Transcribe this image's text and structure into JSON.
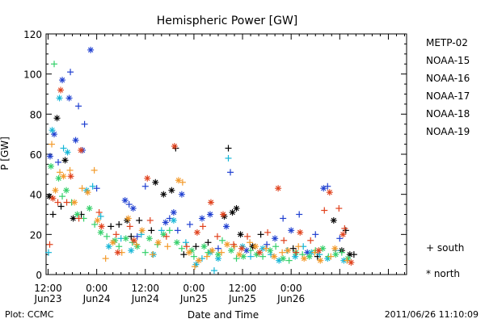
{
  "chart_data": {
    "type": "scatter",
    "title": "Hemispheric Power [GW]",
    "ylabel": "P [GW]",
    "xlabel": "Date and Time",
    "ylim": [
      0,
      120
    ],
    "yticks": [
      0,
      20,
      40,
      60,
      80,
      100,
      120
    ],
    "xlim_hours": [
      -0.5,
      88.5
    ],
    "xticks": [
      {
        "hour": 0,
        "line1": "12:00",
        "line2": "Jun23"
      },
      {
        "hour": 12,
        "line1": "0:00",
        "line2": "Jun24"
      },
      {
        "hour": 24,
        "line1": "12:00",
        "line2": "Jun24"
      },
      {
        "hour": 36,
        "line1": "0:00",
        "line2": "Jun25"
      },
      {
        "hour": 48,
        "line1": "12:00",
        "line2": "Jun25"
      },
      {
        "hour": 60,
        "line1": "0:00",
        "line2": "Jun26"
      }
    ],
    "legend": {
      "position": "right",
      "title": "METP-02",
      "title_color": "#000000",
      "markers": {
        "south": "+ south",
        "north": "* north"
      }
    },
    "series": [
      {
        "name": "METP-02",
        "color": "#000000",
        "north": [
          [
            0.3,
            39
          ],
          [
            2.2,
            78
          ],
          [
            4.2,
            57
          ],
          [
            6.2,
            28
          ],
          [
            19.5,
            27
          ],
          [
            26.5,
            46
          ],
          [
            28.5,
            40
          ],
          [
            30.5,
            42
          ],
          [
            43.5,
            29
          ],
          [
            45.5,
            31
          ],
          [
            46.5,
            33
          ],
          [
            47.5,
            20
          ],
          [
            50.5,
            14
          ],
          [
            70.5,
            27
          ],
          [
            72.5,
            12
          ],
          [
            74.5,
            10
          ]
        ],
        "south": [
          [
            1.2,
            30
          ],
          [
            3.2,
            34
          ],
          [
            8.2,
            30
          ],
          [
            15.5,
            24
          ],
          [
            17.5,
            25
          ],
          [
            20.5,
            19
          ],
          [
            22.5,
            27
          ],
          [
            25.5,
            22
          ],
          [
            31.5,
            63
          ],
          [
            33.5,
            10
          ],
          [
            36.5,
            14
          ],
          [
            39.5,
            16
          ],
          [
            44.5,
            63
          ],
          [
            52.5,
            20
          ],
          [
            60.5,
            13
          ],
          [
            66.5,
            9
          ],
          [
            73.5,
            22
          ],
          [
            75.5,
            10
          ]
        ]
      },
      {
        "name": "NOAA-15",
        "color": "#1f3fd0",
        "north": [
          [
            0.5,
            59
          ],
          [
            1.5,
            70
          ],
          [
            3.5,
            97
          ],
          [
            5.2,
            88
          ],
          [
            6.8,
            67
          ],
          [
            8.5,
            62
          ],
          [
            10.5,
            112
          ],
          [
            19,
            37
          ],
          [
            21,
            33
          ],
          [
            29,
            26
          ],
          [
            31,
            31
          ],
          [
            33,
            40
          ],
          [
            38,
            28
          ],
          [
            40,
            30
          ],
          [
            44,
            24
          ],
          [
            49,
            12
          ],
          [
            56,
            18
          ],
          [
            60,
            22
          ],
          [
            64,
            11
          ],
          [
            68,
            43
          ]
        ],
        "south": [
          [
            2.5,
            56
          ],
          [
            5.5,
            101
          ],
          [
            7.5,
            84
          ],
          [
            9,
            75
          ],
          [
            12,
            43
          ],
          [
            20,
            35
          ],
          [
            22,
            19
          ],
          [
            24,
            44
          ],
          [
            30,
            28
          ],
          [
            32,
            22
          ],
          [
            35,
            25
          ],
          [
            42,
            13
          ],
          [
            45,
            51
          ],
          [
            54,
            15
          ],
          [
            58,
            28
          ],
          [
            62,
            30
          ],
          [
            66,
            20
          ],
          [
            69,
            44
          ],
          [
            72,
            18
          ]
        ]
      },
      {
        "name": "NOAA-16",
        "color": "#16b6d6",
        "north": [
          [
            1.0,
            72
          ],
          [
            2.8,
            88
          ],
          [
            4.8,
            61
          ],
          [
            9.5,
            42
          ],
          [
            15,
            14
          ],
          [
            20.5,
            12
          ],
          [
            26,
            10
          ],
          [
            31,
            27
          ],
          [
            36.5,
            5
          ],
          [
            40,
            11
          ],
          [
            42,
            8
          ],
          [
            48,
            14
          ],
          [
            53,
            13
          ],
          [
            57,
            7
          ],
          [
            61,
            9
          ],
          [
            65,
            11
          ],
          [
            69,
            8
          ],
          [
            73,
            7
          ]
        ],
        "south": [
          [
            0.1,
            11
          ],
          [
            3.8,
            63
          ],
          [
            11,
            44
          ],
          [
            13,
            29
          ],
          [
            18,
            18
          ],
          [
            23,
            20
          ],
          [
            28,
            22
          ],
          [
            34,
            16
          ],
          [
            38,
            8
          ],
          [
            41,
            2
          ],
          [
            44.5,
            58
          ],
          [
            46,
            14
          ],
          [
            50,
            9
          ],
          [
            55,
            10
          ],
          [
            59,
            12
          ],
          [
            63,
            14
          ],
          [
            67,
            10
          ],
          [
            71,
            12
          ]
        ]
      },
      {
        "name": "NOAA-17",
        "color": "#34d06a",
        "north": [
          [
            0.7,
            54
          ],
          [
            2.6,
            48
          ],
          [
            4.5,
            42
          ],
          [
            7.2,
            30
          ],
          [
            10.2,
            33
          ],
          [
            13,
            21
          ],
          [
            16.5,
            17
          ],
          [
            19.2,
            18
          ],
          [
            22,
            14
          ],
          [
            25,
            18
          ],
          [
            28.5,
            20
          ],
          [
            31.8,
            16
          ],
          [
            35.5,
            12
          ],
          [
            38.5,
            14
          ],
          [
            42,
            10
          ],
          [
            45.2,
            12
          ],
          [
            48.2,
            9
          ],
          [
            51.5,
            10
          ],
          [
            54.8,
            12
          ],
          [
            58,
            8
          ],
          [
            61.2,
            11
          ],
          [
            64.5,
            9
          ],
          [
            67.8,
            13
          ],
          [
            71,
            10
          ],
          [
            74,
            8
          ]
        ],
        "south": [
          [
            1.5,
            105
          ],
          [
            3.5,
            39
          ],
          [
            5.8,
            36
          ],
          [
            8.8,
            28
          ],
          [
            11.5,
            25
          ],
          [
            14.5,
            19
          ],
          [
            17.5,
            14
          ],
          [
            20.8,
            16
          ],
          [
            24,
            11
          ],
          [
            27,
            15
          ],
          [
            30,
            22
          ],
          [
            33,
            13
          ],
          [
            36,
            9
          ],
          [
            39.5,
            11
          ],
          [
            43,
            17
          ],
          [
            46.5,
            8
          ],
          [
            50,
            12
          ],
          [
            53,
            9
          ],
          [
            56.2,
            14
          ],
          [
            59.5,
            7
          ],
          [
            62.8,
            10
          ],
          [
            66,
            12
          ],
          [
            69.2,
            9
          ],
          [
            72.5,
            11
          ]
        ]
      },
      {
        "name": "NOAA-18",
        "color": "#f39a2a",
        "north": [
          [
            1.8,
            42
          ],
          [
            3.8,
            49
          ],
          [
            6.5,
            36
          ],
          [
            9.8,
            41
          ],
          [
            12.2,
            27
          ],
          [
            16,
            16
          ],
          [
            19.8,
            28
          ],
          [
            23.2,
            22
          ],
          [
            27.2,
            16
          ],
          [
            32.2,
            47
          ],
          [
            34.8,
            11
          ],
          [
            37.2,
            7
          ],
          [
            40.5,
            12
          ],
          [
            44.2,
            15
          ],
          [
            47.2,
            10
          ],
          [
            51.2,
            14
          ],
          [
            55.8,
            9
          ],
          [
            59.2,
            12
          ],
          [
            63.2,
            8
          ],
          [
            67.2,
            7
          ],
          [
            70.8,
            13
          ]
        ],
        "south": [
          [
            0.9,
            65
          ],
          [
            2.9,
            51
          ],
          [
            5.4,
            52
          ],
          [
            8.4,
            43
          ],
          [
            11.4,
            52
          ],
          [
            14.2,
            8
          ],
          [
            18.2,
            11
          ],
          [
            21.8,
            15
          ],
          [
            25.8,
            10
          ],
          [
            29.5,
            14
          ],
          [
            33.2,
            46
          ],
          [
            36.2,
            4
          ],
          [
            39.2,
            9
          ],
          [
            42.8,
            11
          ],
          [
            46,
            14
          ],
          [
            49.8,
            16
          ],
          [
            53.8,
            13
          ],
          [
            57.8,
            11
          ],
          [
            61.8,
            14
          ],
          [
            65.8,
            11
          ],
          [
            69.8,
            9
          ],
          [
            73.8,
            7
          ]
        ]
      },
      {
        "name": "NOAA-19",
        "color": "#e0401b",
        "north": [
          [
            1.2,
            38
          ],
          [
            3.1,
            92
          ],
          [
            5.6,
            49
          ],
          [
            8.1,
            62
          ],
          [
            13.2,
            24
          ],
          [
            17.2,
            11
          ],
          [
            21.2,
            17
          ],
          [
            24.5,
            48
          ],
          [
            31.2,
            64
          ],
          [
            36.8,
            21
          ],
          [
            40.2,
            36
          ],
          [
            43.2,
            30
          ],
          [
            47.8,
            13
          ],
          [
            52.2,
            11
          ],
          [
            56.8,
            43
          ],
          [
            62.2,
            21
          ],
          [
            66.8,
            12
          ],
          [
            69.5,
            41
          ],
          [
            72.8,
            20
          ],
          [
            74.8,
            6
          ]
        ],
        "south": [
          [
            0.4,
            15
          ],
          [
            2.4,
            36
          ],
          [
            4.6,
            36
          ],
          [
            7.6,
            28
          ],
          [
            12.6,
            31
          ],
          [
            16.8,
            20
          ],
          [
            20.2,
            24
          ],
          [
            25.2,
            27
          ],
          [
            29.2,
            19
          ],
          [
            34.2,
            14
          ],
          [
            38.2,
            24
          ],
          [
            41.8,
            19
          ],
          [
            45.8,
            15
          ],
          [
            49.2,
            19
          ],
          [
            54.2,
            21
          ],
          [
            58.2,
            17
          ],
          [
            61.2,
            11
          ],
          [
            64.8,
            17
          ],
          [
            68.2,
            32
          ],
          [
            71.8,
            33
          ],
          [
            73.2,
            23
          ]
        ]
      }
    ]
  },
  "footer": {
    "left": "Plot: CCMC",
    "right": "2011/06/26 11:10:09"
  }
}
